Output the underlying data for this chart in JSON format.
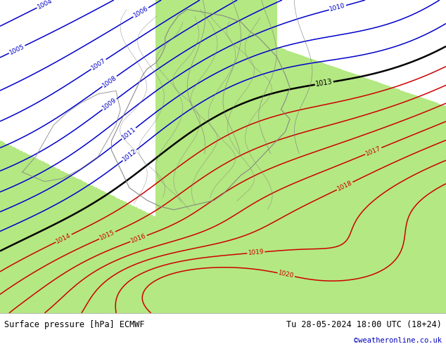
{
  "title_left": "Surface pressure [hPa] ECMWF",
  "title_right": "Tu 28-05-2024 18:00 UTC (18+24)",
  "credit": "©weatheronline.co.uk",
  "bg_color": "#c8c8c8",
  "land_color": "#b4e882",
  "sea_color": "#c8c8c8",
  "blue_contour_color": "#0000cc",
  "red_contour_color": "#cc0000",
  "black_contour_color": "#000000",
  "gray_border_color": "#808080",
  "bottom_bar_color": "#ffffff",
  "bottom_bar_height": 0.09,
  "pressure_levels_blue": [
    1004,
    1005,
    1006,
    1007,
    1008,
    1009,
    1010,
    1011,
    1012
  ],
  "pressure_levels_black": [
    1013
  ],
  "pressure_levels_red": [
    1014,
    1015,
    1016,
    1017,
    1018,
    1019,
    1020
  ],
  "figsize": [
    6.34,
    4.9
  ],
  "dpi": 100
}
